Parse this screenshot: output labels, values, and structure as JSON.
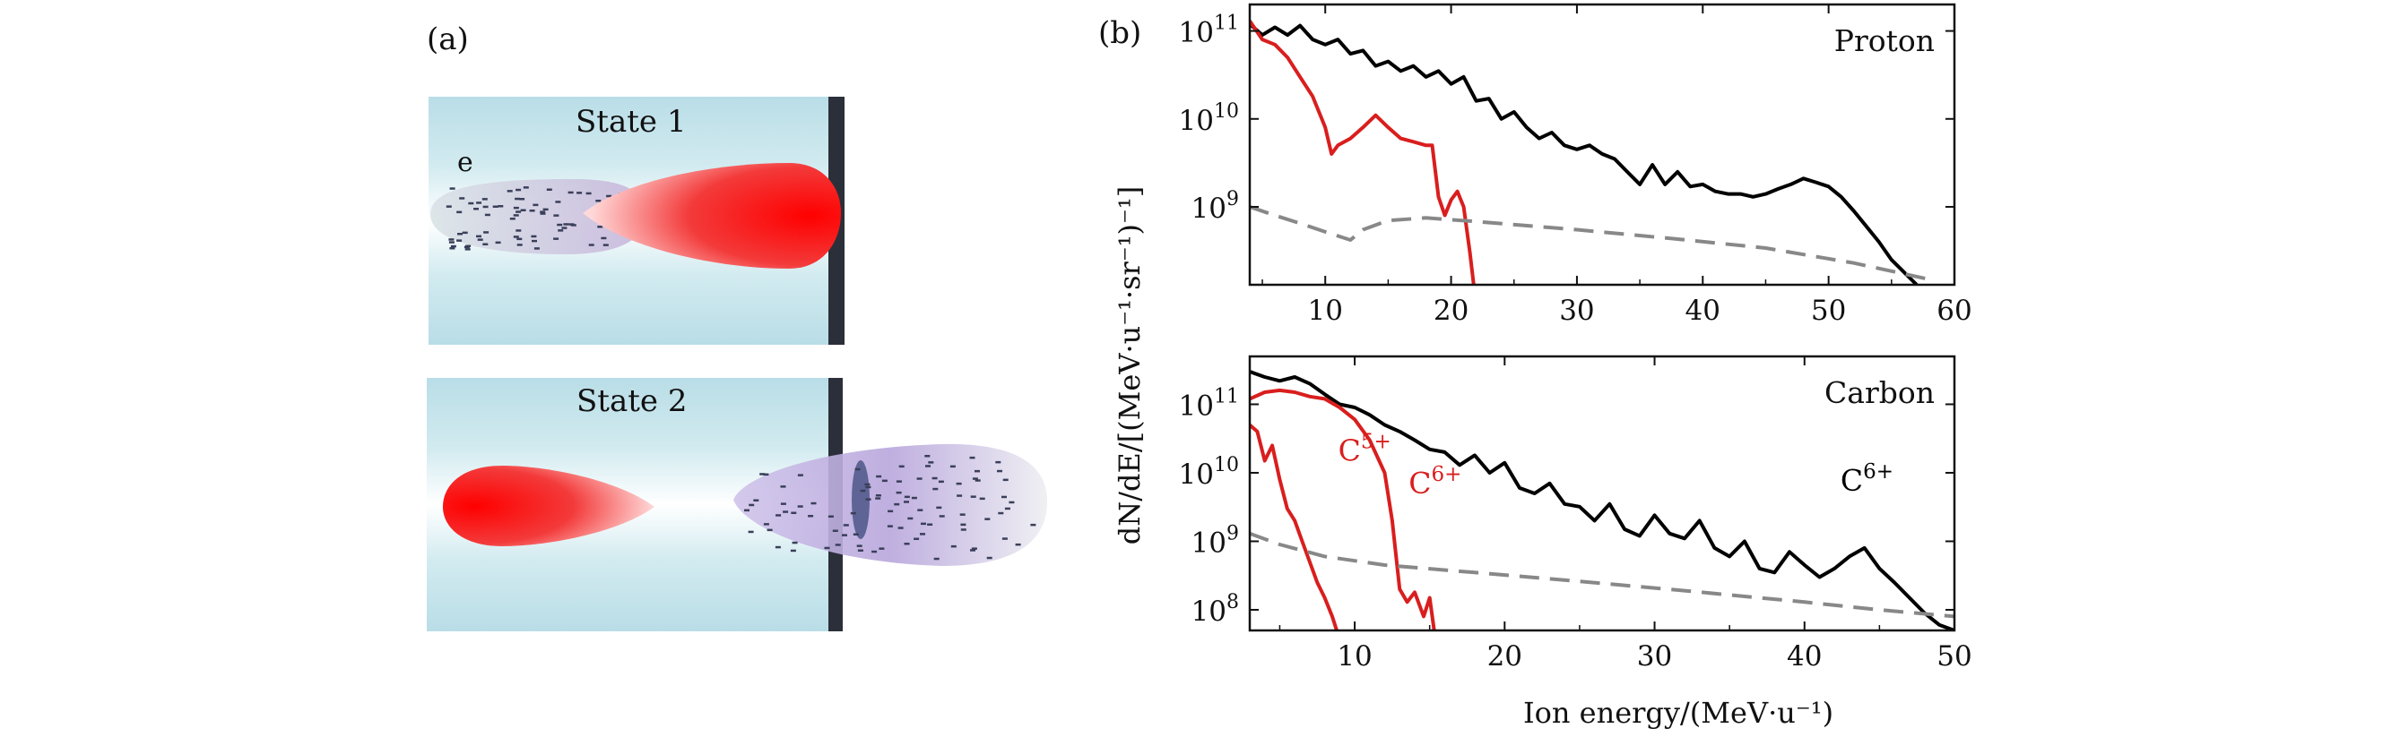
{
  "panel_a": {
    "label": "(a)",
    "state1_label": "State 1",
    "state2_label": "State 2",
    "electron_label": "e"
  },
  "panel_b": {
    "label": "(b)",
    "ylabel": "dN/dE/[(MeV·u⁻¹·sr⁻¹)⁻¹]",
    "xlabel": "Ion energy/(MeV·u⁻¹)"
  },
  "chart_data": [
    {
      "type": "line",
      "title": "Proton",
      "yscale": "log",
      "xlim": [
        4,
        60
      ],
      "ylim": [
        130000000.0,
        200000000000.0
      ],
      "xticks": [
        10,
        20,
        30,
        40,
        50,
        60
      ],
      "yticks": [
        {
          "value": 1000000000.0,
          "base": "10",
          "exp": "9"
        },
        {
          "value": 10000000000.0,
          "base": "10",
          "exp": "10"
        },
        {
          "value": 100000000000.0,
          "base": "10",
          "exp": "11"
        }
      ],
      "annotations": [],
      "series": [
        {
          "color": "#000000",
          "style": "solid",
          "points": [
            [
              4,
              120000000000.0
            ],
            [
              5,
              90000000000.0
            ],
            [
              6,
              110000000000.0
            ],
            [
              7,
              90000000000.0
            ],
            [
              8,
              115000000000.0
            ],
            [
              9,
              80000000000.0
            ],
            [
              10,
              70000000000.0
            ],
            [
              11,
              80000000000.0
            ],
            [
              12,
              55000000000.0
            ],
            [
              13,
              60000000000.0
            ],
            [
              14,
              40000000000.0
            ],
            [
              15,
              45000000000.0
            ],
            [
              16,
              35000000000.0
            ],
            [
              17,
              40000000000.0
            ],
            [
              18,
              30000000000.0
            ],
            [
              19,
              35000000000.0
            ],
            [
              20,
              25000000000.0
            ],
            [
              21,
              30000000000.0
            ],
            [
              22,
              16000000000.0
            ],
            [
              23,
              17000000000.0
            ],
            [
              24,
              10000000000.0
            ],
            [
              25,
              12000000000.0
            ],
            [
              26,
              8000000000.0
            ],
            [
              27,
              6000000000.0
            ],
            [
              28,
              7000000000.0
            ],
            [
              29,
              5000000000.0
            ],
            [
              30,
              4500000000.0
            ],
            [
              31,
              5000000000.0
            ],
            [
              32,
              4000000000.0
            ],
            [
              33,
              3500000000.0
            ],
            [
              34,
              2500000000.0
            ],
            [
              35,
              1800000000.0
            ],
            [
              36,
              3000000000.0
            ],
            [
              37,
              1800000000.0
            ],
            [
              38,
              2500000000.0
            ],
            [
              39,
              1700000000.0
            ],
            [
              40,
              1800000000.0
            ],
            [
              41,
              1500000000.0
            ],
            [
              42,
              1400000000.0
            ],
            [
              43,
              1400000000.0
            ],
            [
              44,
              1300000000.0
            ],
            [
              45,
              1400000000.0
            ],
            [
              46,
              1600000000.0
            ],
            [
              47,
              1800000000.0
            ],
            [
              48,
              2100000000.0
            ],
            [
              49,
              1900000000.0
            ],
            [
              50,
              1700000000.0
            ],
            [
              51,
              1300000000.0
            ],
            [
              52,
              900000000.0
            ],
            [
              53,
              600000000.0
            ],
            [
              54,
              400000000.0
            ],
            [
              55,
              250000000.0
            ],
            [
              56,
              180000000.0
            ],
            [
              57,
              130000000.0
            ]
          ]
        },
        {
          "color": "#d91e1e",
          "style": "solid",
          "points": [
            [
              4,
              130000000000.0
            ],
            [
              5,
              80000000000.0
            ],
            [
              6,
              70000000000.0
            ],
            [
              7,
              50000000000.0
            ],
            [
              8,
              30000000000.0
            ],
            [
              9,
              18000000000.0
            ],
            [
              10,
              8000000000.0
            ],
            [
              10.5,
              4000000000.0
            ],
            [
              11,
              5000000000.0
            ],
            [
              12,
              6000000000.0
            ],
            [
              13,
              8000000000.0
            ],
            [
              14,
              11000000000.0
            ],
            [
              15,
              8000000000.0
            ],
            [
              16,
              6000000000.0
            ],
            [
              17,
              5500000000.0
            ],
            [
              18,
              5000000000.0
            ],
            [
              18.5,
              5000000000.0
            ],
            [
              19,
              1300000000.0
            ],
            [
              19.5,
              800000000.0
            ],
            [
              20,
              1200000000.0
            ],
            [
              20.5,
              1500000000.0
            ],
            [
              21,
              1000000000.0
            ],
            [
              21.5,
              300000000.0
            ],
            [
              21.8,
              130000000.0
            ]
          ]
        },
        {
          "color": "#888888",
          "style": "dashed",
          "points": [
            [
              4,
              1000000000.0
            ],
            [
              6,
              800000000.0
            ],
            [
              8,
              650000000.0
            ],
            [
              10,
              520000000.0
            ],
            [
              12,
              420000000.0
            ],
            [
              13,
              550000000.0
            ],
            [
              15,
              700000000.0
            ],
            [
              18,
              750000000.0
            ],
            [
              22,
              680000000.0
            ],
            [
              30,
              550000000.0
            ],
            [
              38,
              430000000.0
            ],
            [
              45,
              340000000.0
            ],
            [
              52,
              230000000.0
            ],
            [
              58,
              150000000.0
            ]
          ]
        }
      ]
    },
    {
      "type": "line",
      "title": "Carbon",
      "yscale": "log",
      "xlim": [
        3,
        50
      ],
      "ylim": [
        50000000.0,
        500000000000.0
      ],
      "xticks": [
        10,
        20,
        30,
        40,
        50
      ],
      "yticks": [
        {
          "value": 100000000.0,
          "base": "10",
          "exp": "8"
        },
        {
          "value": 1000000000.0,
          "base": "10",
          "exp": "9"
        },
        {
          "value": 10000000000.0,
          "base": "10",
          "exp": "10"
        },
        {
          "value": 100000000000.0,
          "base": "10",
          "exp": "11"
        }
      ],
      "annotations": [
        {
          "base": "C",
          "sup": "5+",
          "color": "#d91e1e",
          "x": 8.9,
          "y": 15000000000.0
        },
        {
          "base": "C",
          "sup": "6+",
          "color": "#d91e1e",
          "x": 13.6,
          "y": 5000000000.0
        },
        {
          "base": "C",
          "sup": "6+",
          "color": "#000000",
          "x": 42.4,
          "y": 5500000000.0
        }
      ],
      "series": [
        {
          "color": "#000000",
          "style": "solid",
          "points": [
            [
              3,
              300000000000.0
            ],
            [
              4,
              250000000000.0
            ],
            [
              5,
              220000000000.0
            ],
            [
              6,
              250000000000.0
            ],
            [
              7,
              200000000000.0
            ],
            [
              8,
              140000000000.0
            ],
            [
              9,
              100000000000.0
            ],
            [
              10,
              90000000000.0
            ],
            [
              11,
              70000000000.0
            ],
            [
              12,
              50000000000.0
            ],
            [
              13,
              40000000000.0
            ],
            [
              14,
              30000000000.0
            ],
            [
              15,
              22000000000.0
            ],
            [
              16,
              20000000000.0
            ],
            [
              17,
              13000000000.0
            ],
            [
              18,
              18000000000.0
            ],
            [
              19,
              10000000000.0
            ],
            [
              20,
              14000000000.0
            ],
            [
              21,
              6000000000.0
            ],
            [
              22,
              5000000000.0
            ],
            [
              23,
              7000000000.0
            ],
            [
              24,
              3500000000.0
            ],
            [
              25,
              3200000000.0
            ],
            [
              26,
              2000000000.0
            ],
            [
              27,
              3500000000.0
            ],
            [
              28,
              1500000000.0
            ],
            [
              29,
              1200000000.0
            ],
            [
              30,
              2400000000.0
            ],
            [
              31,
              1300000000.0
            ],
            [
              32,
              1100000000.0
            ],
            [
              33,
              2000000000.0
            ],
            [
              34,
              800000000.0
            ],
            [
              35,
              600000000.0
            ],
            [
              36,
              1000000000.0
            ],
            [
              37,
              400000000.0
            ],
            [
              38,
              350000000.0
            ],
            [
              39,
              700000000.0
            ],
            [
              40,
              450000000.0
            ],
            [
              41,
              300000000.0
            ],
            [
              42,
              400000000.0
            ],
            [
              43,
              600000000.0
            ],
            [
              44,
              800000000.0
            ],
            [
              45,
              400000000.0
            ],
            [
              46,
              250000000.0
            ],
            [
              47,
              150000000.0
            ],
            [
              48,
              90000000.0
            ],
            [
              49,
              60000000.0
            ],
            [
              50,
              50000000.0
            ]
          ]
        },
        {
          "color": "#d91e1e",
          "style": "solid",
          "points": [
            [
              3,
              120000000000.0
            ],
            [
              4,
              150000000000.0
            ],
            [
              5,
              160000000000.0
            ],
            [
              6,
              150000000000.0
            ],
            [
              7,
              130000000000.0
            ],
            [
              8,
              120000000000.0
            ],
            [
              9,
              90000000000.0
            ],
            [
              10,
              60000000000.0
            ],
            [
              11,
              30000000000.0
            ],
            [
              12,
              10000000000.0
            ],
            [
              12.5,
              2000000000.0
            ],
            [
              13,
              200000000.0
            ],
            [
              13.5,
              130000000.0
            ],
            [
              14,
              180000000.0
            ],
            [
              14.3,
              120000000.0
            ],
            [
              14.6,
              80000000.0
            ],
            [
              15,
              150000000.0
            ],
            [
              15.3,
              50000000.0
            ]
          ]
        },
        {
          "color": "#d91e1e",
          "style": "solid",
          "points": [
            [
              3,
              50000000000.0
            ],
            [
              3.5,
              40000000000.0
            ],
            [
              4,
              15000000000.0
            ],
            [
              4.5,
              25000000000.0
            ],
            [
              5,
              8000000000.0
            ],
            [
              5.5,
              3000000000.0
            ],
            [
              6,
              2000000000.0
            ],
            [
              6.5,
              1000000000.0
            ],
            [
              7,
              500000000.0
            ],
            [
              7.5,
              250000000.0
            ],
            [
              8,
              150000000.0
            ],
            [
              8.5,
              80000000.0
            ],
            [
              8.8,
              50000000.0
            ]
          ]
        },
        {
          "color": "#888888",
          "style": "dashed",
          "points": [
            [
              3,
              1300000000.0
            ],
            [
              5,
              900000000.0
            ],
            [
              8,
              600000000.0
            ],
            [
              12,
              450000000.0
            ],
            [
              18,
              350000000.0
            ],
            [
              25,
              260000000.0
            ],
            [
              32,
              190000000.0
            ],
            [
              40,
              130000000.0
            ],
            [
              45,
              100000000.0
            ],
            [
              50,
              80000000.0
            ]
          ]
        }
      ]
    }
  ]
}
